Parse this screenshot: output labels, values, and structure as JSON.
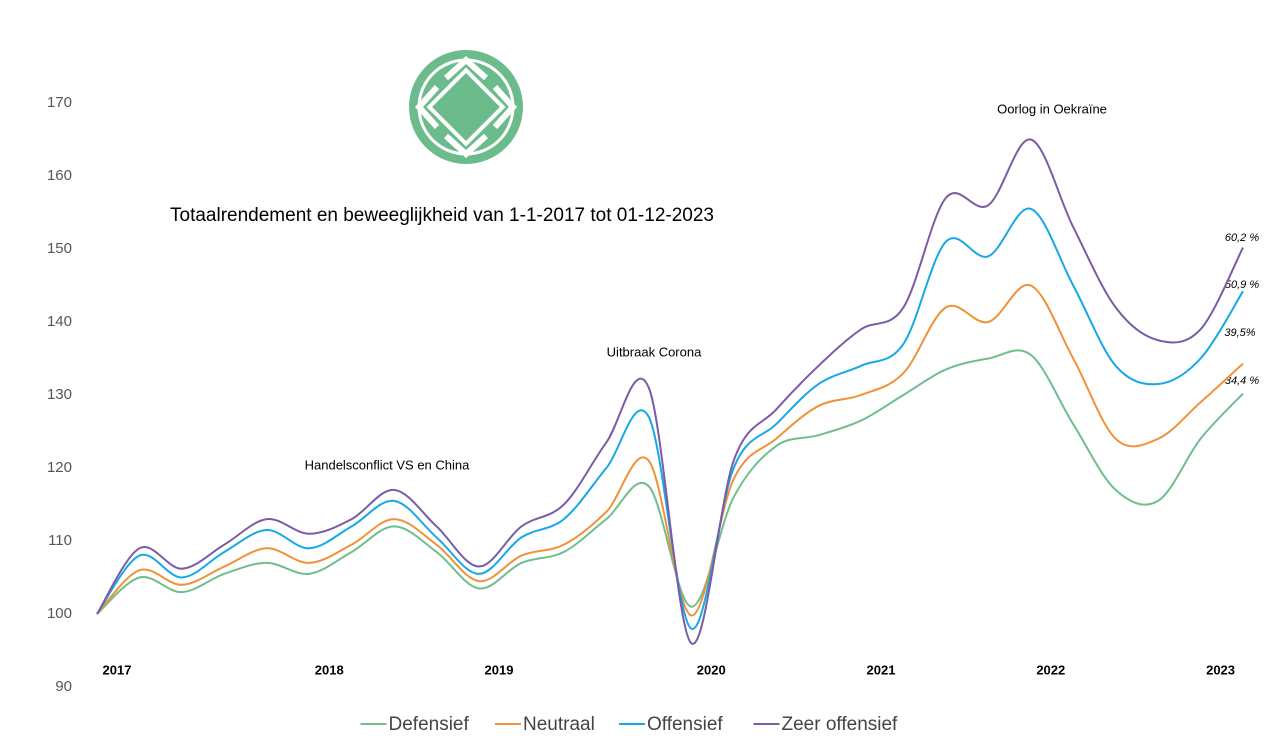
{
  "chart_data": {
    "type": "line",
    "title": "Totaalrendement en beweeglijkheid van 1-1-2017 tot 01-12-2023",
    "categories": [
      "2017",
      null,
      null,
      null,
      null,
      "2018",
      null,
      null,
      null,
      "2019",
      null,
      null,
      null,
      null,
      "2020",
      null,
      null,
      null,
      "2021",
      null,
      null,
      null,
      "2022",
      null,
      null,
      null,
      "2023",
      null
    ],
    "series": [
      {
        "name": "Defensief",
        "color": "#6fbf8e",
        "values": [
          100,
          105,
          103,
          105.5,
          107,
          105.5,
          108.5,
          112,
          108.5,
          103.5,
          107,
          108.5,
          113,
          117.5,
          101,
          116,
          123,
          124.5,
          126.5,
          130,
          133.5,
          135,
          135.5,
          126,
          117,
          115.5,
          124,
          130.2
        ]
      },
      {
        "name": "Neutraal",
        "color": "#f0923a",
        "values": [
          100,
          106,
          104,
          106.5,
          109,
          107,
          109.5,
          113,
          109.5,
          104.5,
          108,
          109.5,
          114,
          121,
          99.8,
          118.5,
          124,
          128.5,
          130,
          133,
          142,
          140,
          145,
          135,
          124,
          124,
          129,
          134.3
        ]
      },
      {
        "name": "Offensief",
        "color": "#16a9e6",
        "values": [
          100,
          108,
          105,
          108.5,
          111.5,
          109,
          112,
          115.5,
          110.5,
          105.5,
          110.5,
          113,
          120,
          127,
          98,
          120,
          126,
          131.5,
          134,
          137,
          151,
          149,
          155.5,
          145,
          134,
          131.5,
          135,
          144.2
        ]
      },
      {
        "name": "Zeer offensief",
        "color": "#7b5ca6",
        "values": [
          100,
          109,
          106.2,
          109.5,
          113,
          111,
          113,
          117,
          112,
          106.5,
          112,
          115,
          123.5,
          131,
          96,
          121,
          128,
          134,
          139,
          142,
          157,
          156,
          165,
          153,
          142,
          137.5,
          139,
          150.2
        ]
      }
    ],
    "annotations": [
      "Handelsconflict VS en China",
      "Uitbraak Corona",
      "Oorlog in Oekraïne",
      "60,2 %",
      "50,9 %",
      "39,5%",
      "34,4 %"
    ],
    "ylim": [
      90,
      170
    ],
    "yticks": [
      90,
      100,
      110,
      120,
      130,
      140,
      150,
      160,
      170
    ],
    "grid": false,
    "legend": "bottom"
  }
}
